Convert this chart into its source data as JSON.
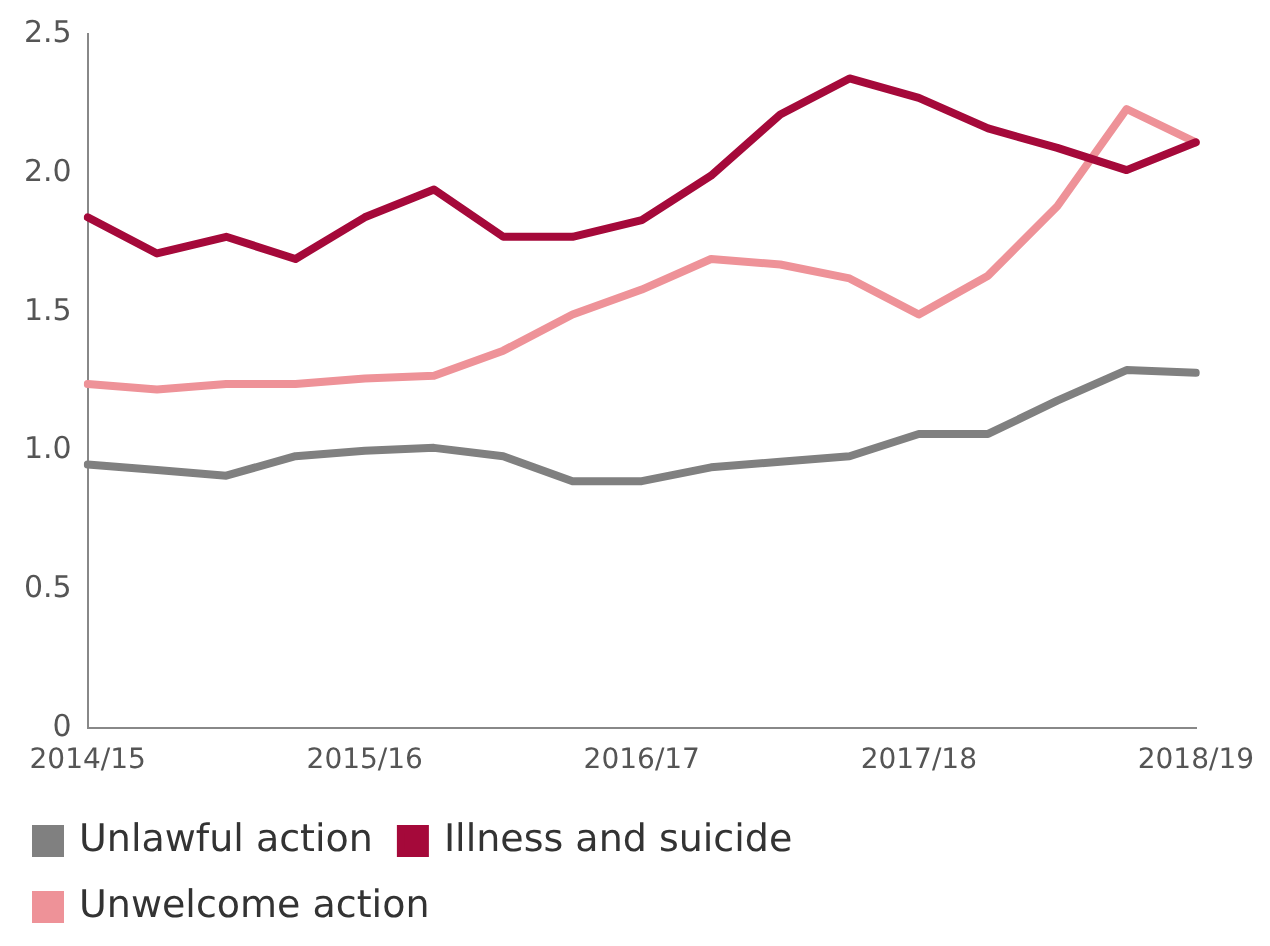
{
  "chart_data": {
    "type": "line",
    "categories": [
      "2014/15",
      null,
      null,
      null,
      "2015/16",
      null,
      null,
      null,
      "2016/17",
      null,
      null,
      null,
      "2017/18",
      null,
      null,
      null,
      "2018/19"
    ],
    "series": [
      {
        "name": "Unlawful action",
        "color": "#808080",
        "values": [
          0.95,
          0.93,
          0.91,
          0.98,
          1.0,
          1.01,
          0.98,
          0.89,
          0.89,
          0.94,
          0.96,
          0.98,
          1.06,
          1.06,
          1.18,
          1.29,
          1.28
        ]
      },
      {
        "name": "Illness and suicide",
        "color": "#a5093a",
        "values": [
          1.84,
          1.71,
          1.77,
          1.69,
          1.84,
          1.94,
          1.77,
          1.77,
          1.83,
          1.99,
          2.21,
          2.34,
          2.27,
          2.16,
          2.09,
          2.01,
          2.11
        ]
      },
      {
        "name": "Unwelcome action",
        "color": "#ee9298",
        "values": [
          1.24,
          1.22,
          1.24,
          1.24,
          1.26,
          1.27,
          1.36,
          1.49,
          1.58,
          1.69,
          1.67,
          1.62,
          1.49,
          1.63,
          1.88,
          2.23,
          2.11
        ]
      }
    ],
    "ylim": [
      0,
      2.5
    ],
    "yticks": [
      0,
      0.5,
      {
        "value": 1,
        "label": "1.0"
      },
      1.5,
      {
        "value": 2,
        "label": "2.0"
      },
      2.5
    ],
    "grid": false,
    "legend": "bottom",
    "marker": "none",
    "line_style": "solid"
  }
}
